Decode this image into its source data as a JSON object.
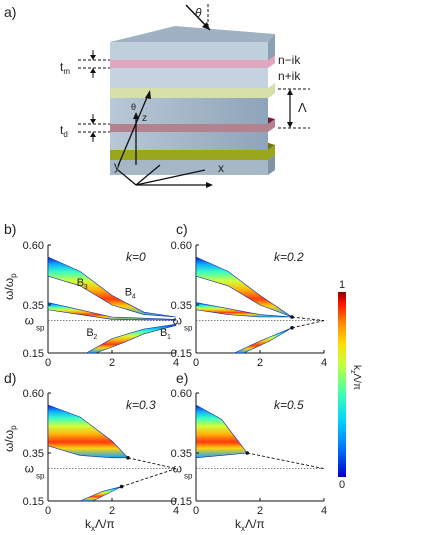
{
  "panel_labels": [
    "a)",
    "b)",
    "c)",
    "d)",
    "e)"
  ],
  "diagram": {
    "theta": "θ",
    "tm": "t",
    "tm_sub": "m",
    "td": "t",
    "td_sub": "d",
    "layer_top": "n−ik",
    "layer_bottom": "n+ik",
    "period": "Λ",
    "axis_x": "x",
    "axis_y": "y",
    "axis_z": "z",
    "incidence_mark": "θ"
  },
  "axes_text": {
    "ylabel": "ω/ω",
    "ylabel_sub": "p",
    "wsp_symbol": "ω",
    "wsp_sub": "sp",
    "xlabel": "k",
    "xlabel_sub": "x",
    "xlabel_tail": "Λ/π"
  },
  "colorbar": {
    "max": "1",
    "min": "0",
    "label": "k",
    "label_sub": "z",
    "label_tail": "Λ/π",
    "colors": [
      "#0000c8",
      "#0070ff",
      "#00d0ff",
      "#40ffb0",
      "#c0ff40",
      "#ffe000",
      "#ff8000",
      "#ff1000",
      "#8b0000"
    ]
  },
  "chart_data": [
    {
      "type": "area",
      "panel": "b)",
      "title": "k=0",
      "ylim": [
        0.15,
        0.6
      ],
      "xlim": [
        0,
        4
      ],
      "yticks": [
        0.15,
        0.35,
        0.6
      ],
      "xticks": [
        0,
        2,
        4
      ],
      "omega_sp": 0.285,
      "band_labels": [
        "B",
        "B",
        "B",
        "B"
      ],
      "band_subs": [
        "3",
        "4",
        "2",
        "1"
      ],
      "bands": [
        {
          "top": [
            [
              0,
              0.55
            ],
            [
              1,
              0.49
            ],
            [
              2,
              0.39
            ],
            [
              3,
              0.32
            ],
            [
              4,
              0.3
            ]
          ],
          "bottom": [
            [
              0,
              0.47
            ],
            [
              1,
              0.43
            ],
            [
              2,
              0.35
            ],
            [
              3,
              0.31
            ],
            [
              4,
              0.3
            ]
          ]
        },
        {
          "top": [
            [
              0,
              0.36
            ],
            [
              1,
              0.33
            ],
            [
              2,
              0.3
            ],
            [
              3,
              0.295
            ],
            [
              4,
              0.29
            ]
          ],
          "bottom": [
            [
              0,
              0.33
            ],
            [
              1,
              0.31
            ],
            [
              2,
              0.29
            ],
            [
              3,
              0.288
            ],
            [
              4,
              0.287
            ]
          ]
        },
        {
          "top": [
            [
              1.2,
              0.15
            ],
            [
              2,
              0.21
            ],
            [
              3,
              0.25
            ],
            [
              4,
              0.27
            ]
          ],
          "bottom": [
            [
              1.5,
              0.15
            ],
            [
              2.3,
              0.19
            ],
            [
              3,
              0.23
            ],
            [
              4,
              0.265
            ]
          ]
        }
      ]
    },
    {
      "type": "area",
      "panel": "c)",
      "title": "k=0.2",
      "ylim": [
        0.15,
        0.6
      ],
      "xlim": [
        0,
        4
      ],
      "yticks": [
        0.15,
        0.35,
        0.6
      ],
      "xticks": [
        0,
        2,
        4
      ],
      "omega_sp": 0.285,
      "exceptional_points": [
        [
          3.0,
          0.3
        ],
        [
          3.0,
          0.255
        ]
      ],
      "bands": [
        {
          "top": [
            [
              0,
              0.55
            ],
            [
              1,
              0.49
            ],
            [
              2,
              0.39
            ],
            [
              3,
              0.3
            ]
          ],
          "bottom": [
            [
              0,
              0.47
            ],
            [
              1,
              0.43
            ],
            [
              2,
              0.35
            ],
            [
              3,
              0.3
            ]
          ]
        },
        {
          "top": [
            [
              0,
              0.36
            ],
            [
              1,
              0.335
            ],
            [
              2,
              0.31
            ],
            [
              3,
              0.3
            ]
          ],
          "bottom": [
            [
              0,
              0.33
            ],
            [
              1,
              0.31
            ],
            [
              2,
              0.3
            ],
            [
              3,
              0.3
            ]
          ]
        },
        {
          "top": [
            [
              1.2,
              0.15
            ],
            [
              2,
              0.2
            ],
            [
              3,
              0.255
            ]
          ],
          "bottom": [
            [
              1.5,
              0.15
            ],
            [
              2.3,
              0.2
            ],
            [
              3,
              0.255
            ]
          ]
        }
      ]
    },
    {
      "type": "area",
      "panel": "d)",
      "title": "k=0.3",
      "ylim": [
        0.15,
        0.6
      ],
      "xlim": [
        0,
        4
      ],
      "yticks": [
        0.15,
        0.35,
        0.6
      ],
      "xticks": [
        0,
        2,
        4
      ],
      "omega_sp": 0.285,
      "exceptional_points": [
        [
          2.5,
          0.33
        ],
        [
          2.3,
          0.21
        ]
      ],
      "bands": [
        {
          "top": [
            [
              0,
              0.55
            ],
            [
              1,
              0.5
            ],
            [
              2,
              0.4
            ],
            [
              2.5,
              0.33
            ]
          ],
          "bottom": [
            [
              0,
              0.38
            ],
            [
              1,
              0.34
            ],
            [
              2,
              0.33
            ],
            [
              2.5,
              0.33
            ]
          ]
        },
        {
          "top": [
            [
              1,
              0.15
            ],
            [
              1.7,
              0.19
            ],
            [
              2.3,
              0.21
            ]
          ],
          "bottom": [
            [
              1.4,
              0.15
            ],
            [
              2,
              0.19
            ],
            [
              2.3,
              0.21
            ]
          ]
        }
      ]
    },
    {
      "type": "area",
      "panel": "e)",
      "title": "k=0.5",
      "ylim": [
        0.15,
        0.6
      ],
      "xlim": [
        0,
        4
      ],
      "yticks": [
        0.15,
        0.35,
        0.6
      ],
      "xticks": [
        0,
        2,
        4
      ],
      "omega_sp": 0.285,
      "exceptional_points": [
        [
          1.6,
          0.35
        ]
      ],
      "bands": [
        {
          "top": [
            [
              0,
              0.55
            ],
            [
              0.8,
              0.49
            ],
            [
              1.6,
              0.35
            ]
          ],
          "bottom": [
            [
              0,
              0.33
            ],
            [
              0.8,
              0.34
            ],
            [
              1.6,
              0.35
            ]
          ]
        }
      ]
    }
  ]
}
